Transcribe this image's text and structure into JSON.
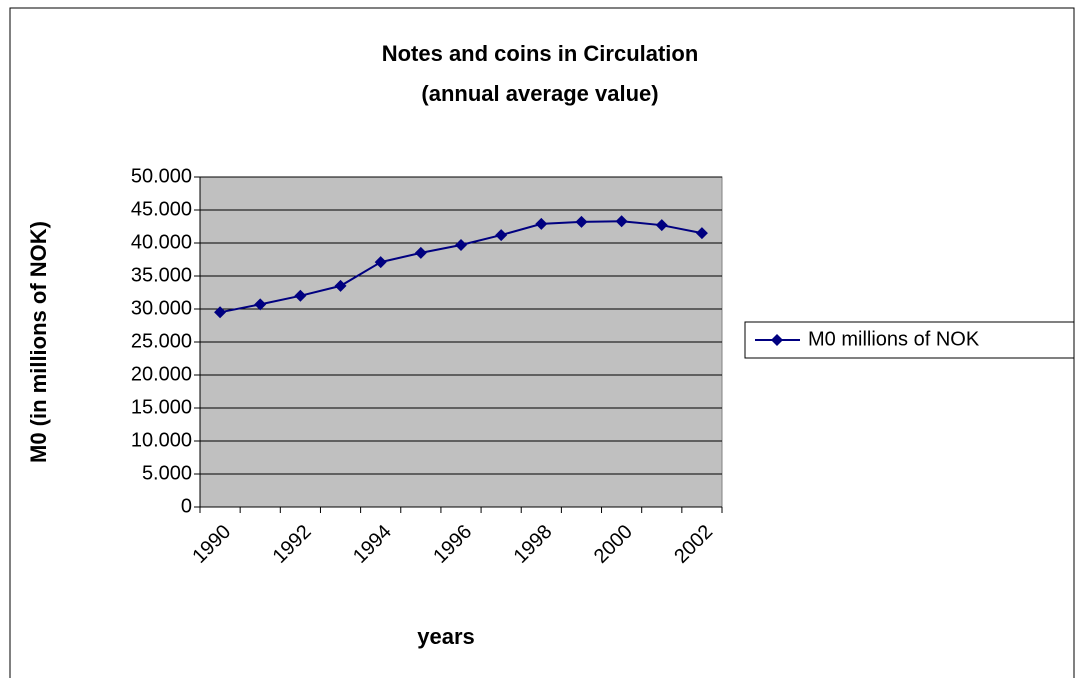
{
  "chart_data": {
    "type": "line",
    "title": [
      "Notes and coins in Circulation",
      "(annual average value)"
    ],
    "x_label": "years",
    "y_label": "M0 (in millions of NOK)",
    "categories": [
      "1990",
      null,
      "1992",
      null,
      "1994",
      null,
      "1996",
      null,
      "1998",
      null,
      "2000",
      null,
      "2002"
    ],
    "series": [
      {
        "name": "M0 millions of NOK",
        "color": "#000080",
        "values": [
          29500,
          30700,
          32000,
          33500,
          37100,
          38500,
          39700,
          41200,
          42900,
          43200,
          43300,
          42700,
          41500
        ]
      }
    ],
    "ylim": [
      0,
      50000
    ],
    "yticks": [
      0,
      {
        "value": 5000,
        "label": "5.000"
      },
      {
        "value": 10000,
        "label": "10.000"
      },
      {
        "value": 15000,
        "label": "15.000"
      },
      {
        "value": 20000,
        "label": "20.000"
      },
      {
        "value": 25000,
        "label": "25.000"
      },
      {
        "value": 30000,
        "label": "30.000"
      },
      {
        "value": 35000,
        "label": "35.000"
      },
      {
        "value": 40000,
        "label": "40.000"
      },
      {
        "value": 45000,
        "label": "45.000"
      },
      {
        "value": 50000,
        "label": "50.000"
      }
    ],
    "grid": true,
    "legend": "right",
    "plot_background": "#c0c0c0"
  }
}
